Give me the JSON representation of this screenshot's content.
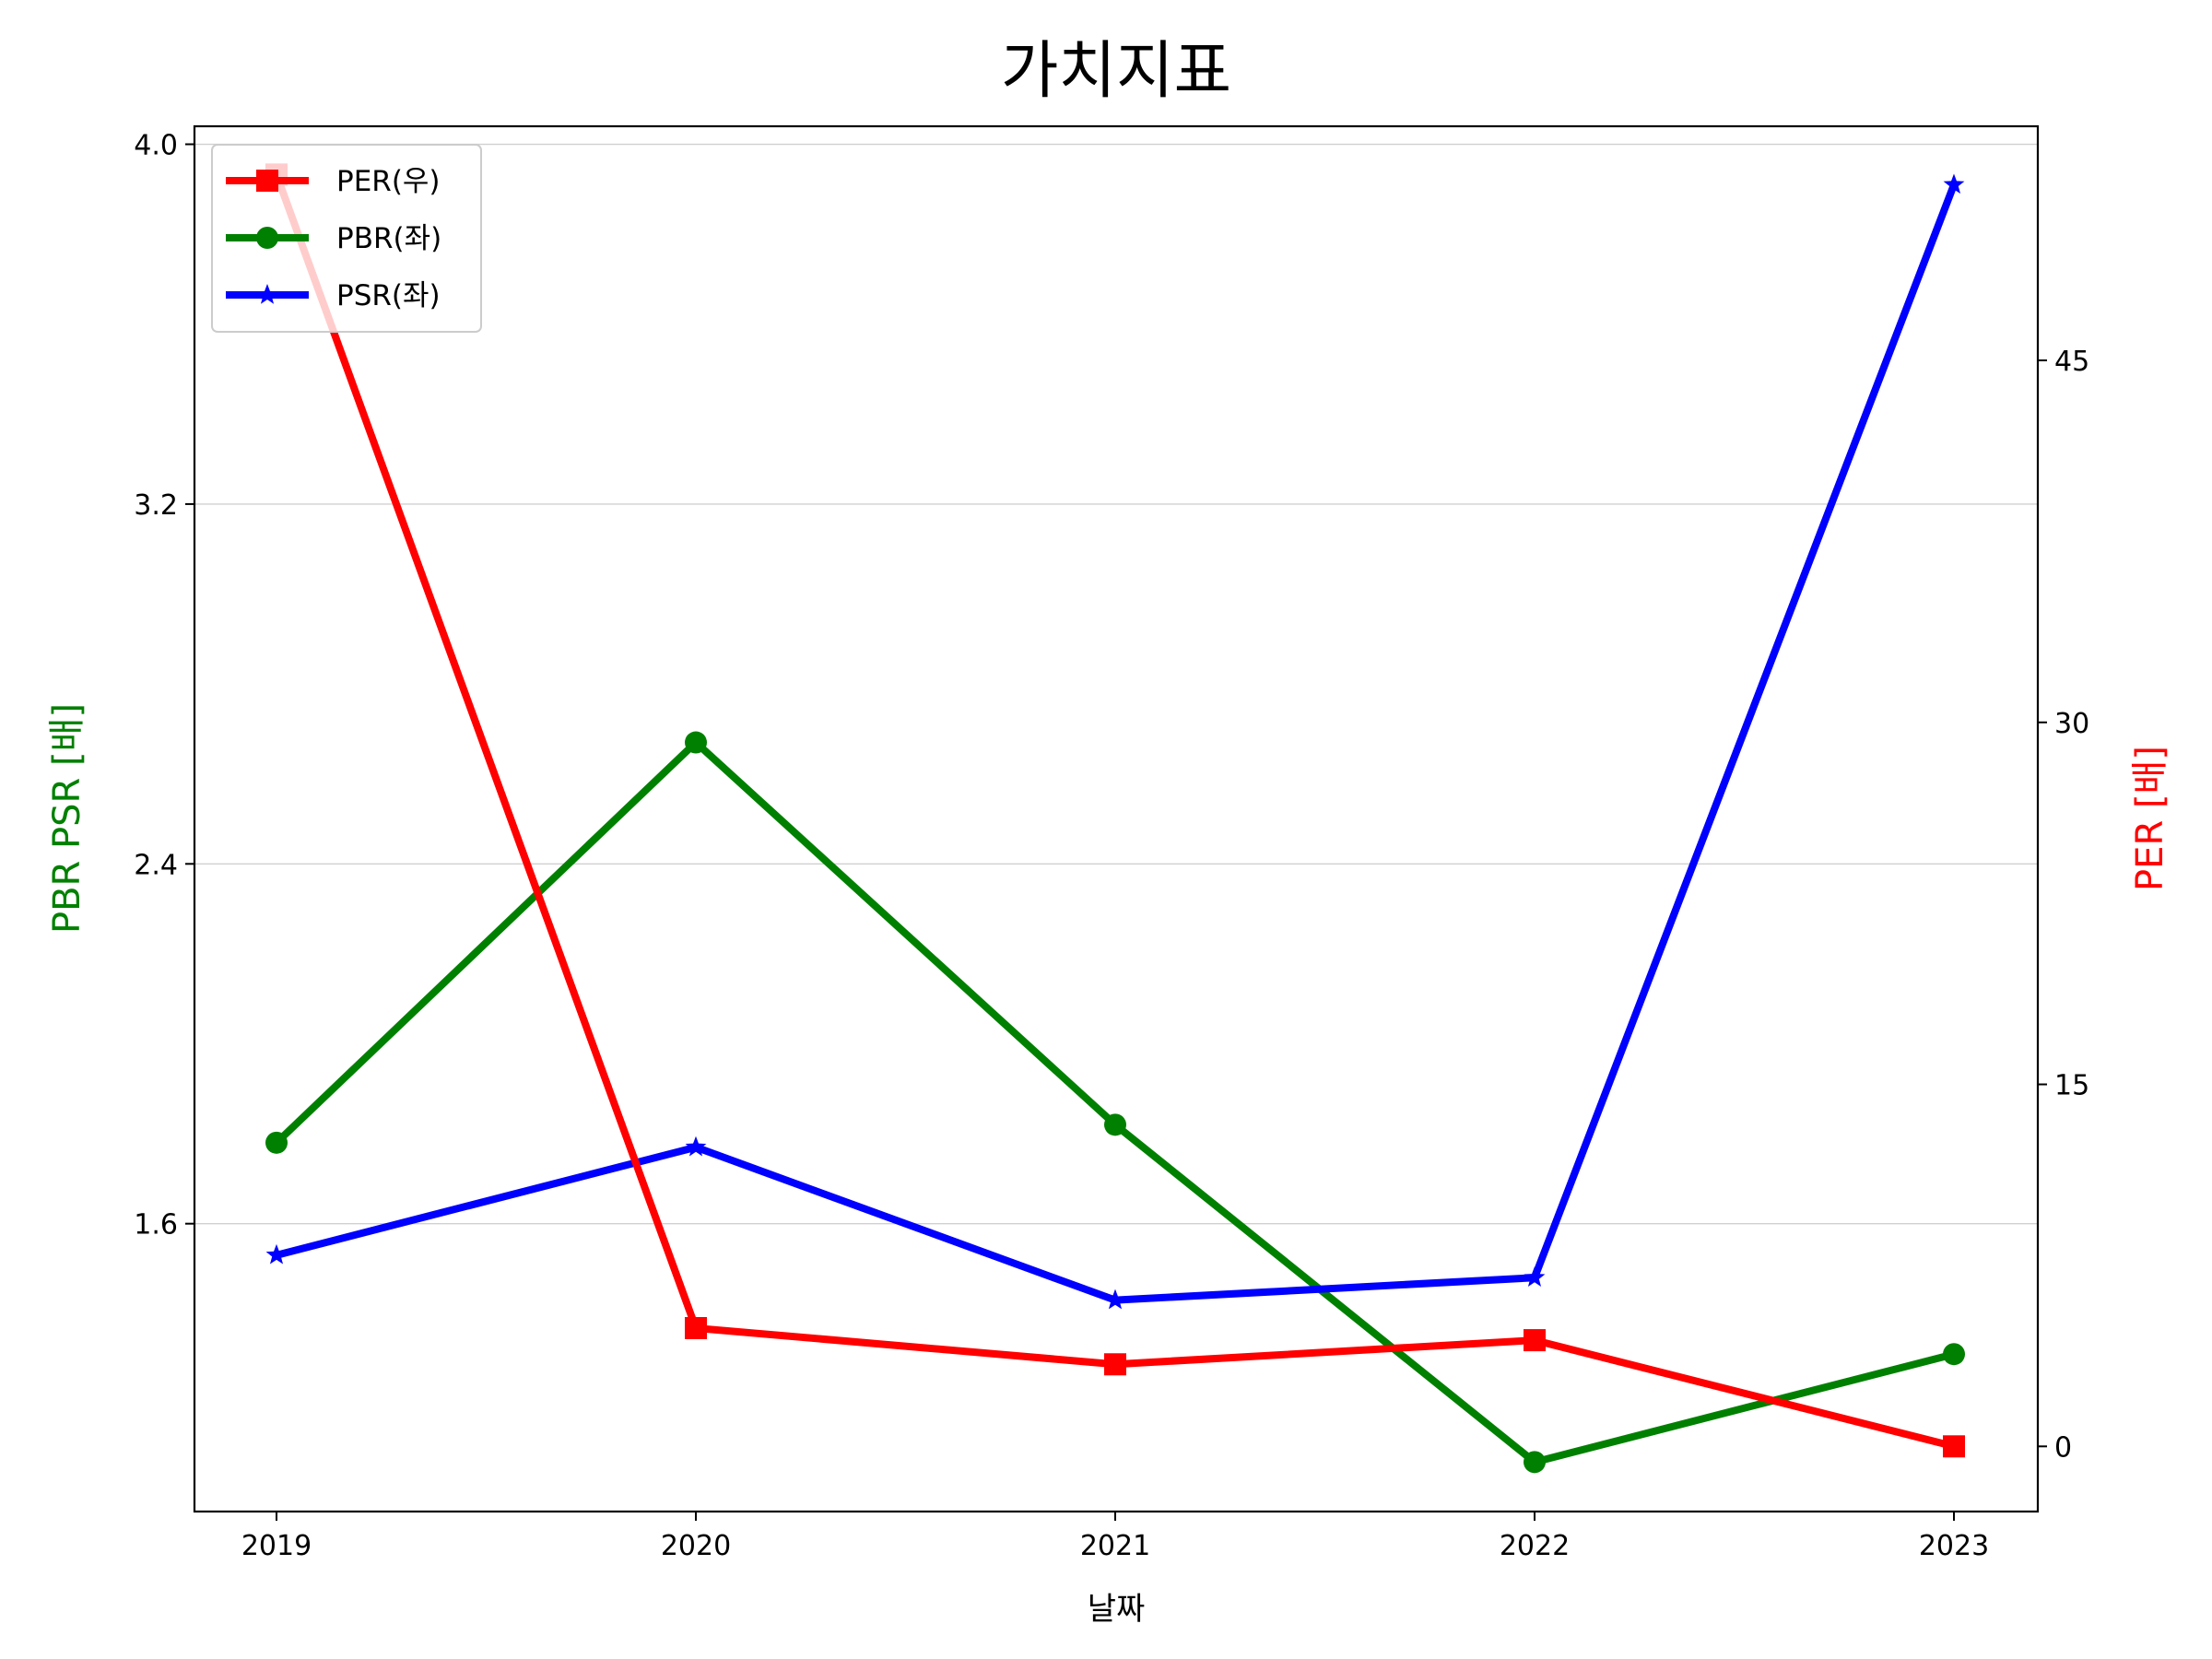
{
  "chart_data": {
    "type": "line",
    "title": "가치지표",
    "xlabel": "날짜",
    "ylabel_left": "PBR PSR [배]",
    "ylabel_right": "PER [배]",
    "x": [
      "2019",
      "2020",
      "2021",
      "2022",
      "2023"
    ],
    "y_left_ticks": [
      "1.6",
      "2.4",
      "3.2",
      "4.0"
    ],
    "y_left_tick_values": [
      1.6,
      2.4,
      3.2,
      4.0
    ],
    "y_left_range": [
      0.96,
      4.04
    ],
    "y_right_ticks": [
      "0",
      "15",
      "30",
      "45"
    ],
    "y_right_tick_values": [
      0,
      15,
      30,
      45
    ],
    "y_right_range": [
      -2.7,
      54.7
    ],
    "grid": "horizontal (left axis)",
    "legend_position": "top-left",
    "series": [
      {
        "name": "PER(우)",
        "axis": "right",
        "color": "#ff0000",
        "marker": "square",
        "values": [
          52.7,
          4.9,
          3.4,
          4.4,
          0.0
        ]
      },
      {
        "name": "PBR(좌)",
        "axis": "left",
        "color": "#008000",
        "marker": "circle",
        "values": [
          1.78,
          2.67,
          1.82,
          1.07,
          1.31
        ]
      },
      {
        "name": "PSR(좌)",
        "axis": "left",
        "color": "#0000ff",
        "marker": "star",
        "values": [
          1.53,
          1.77,
          1.43,
          1.48,
          3.91
        ]
      }
    ],
    "colors": {
      "ylabel_left": "#008000",
      "ylabel_right": "#ff0000"
    }
  }
}
